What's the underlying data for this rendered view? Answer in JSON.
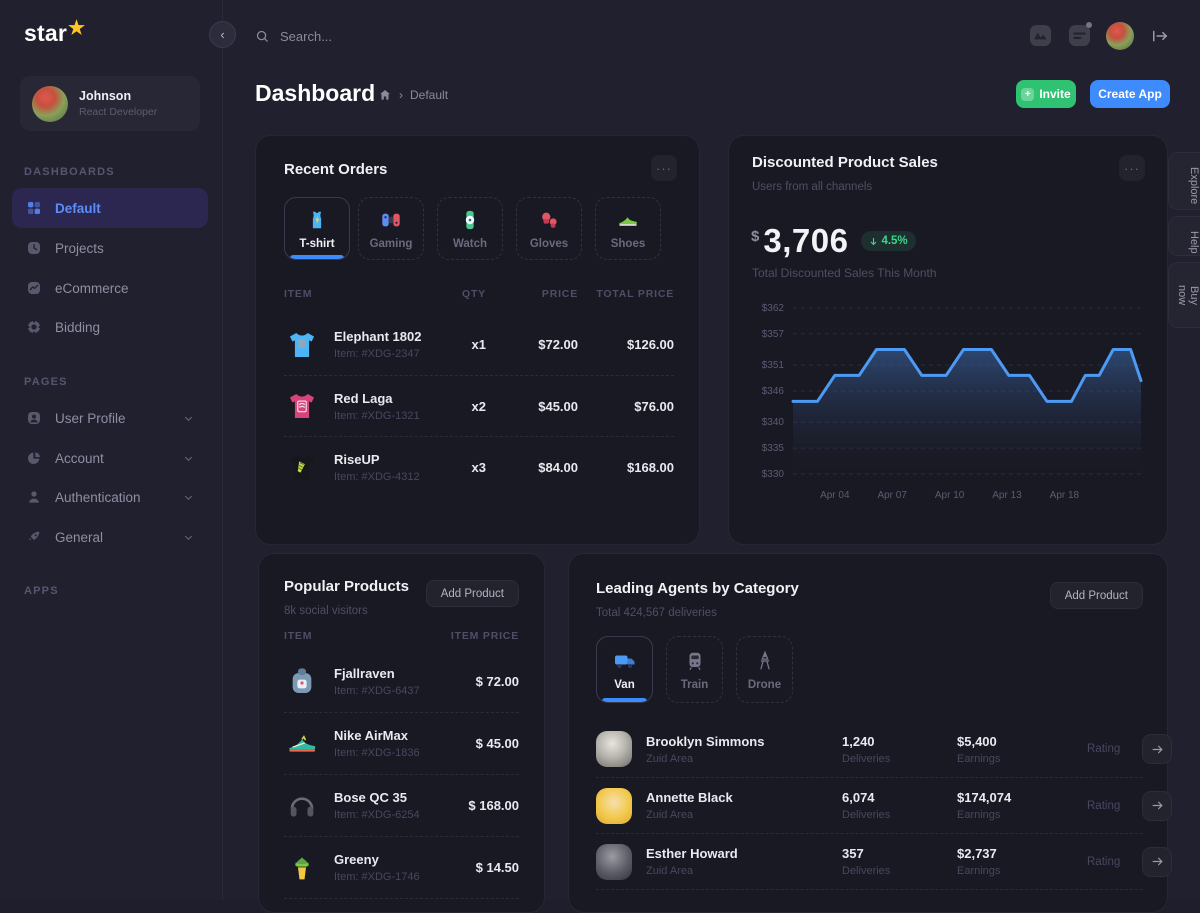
{
  "colors": {
    "accent_blue": "#3d8bfd",
    "accent_green": "#2fc272",
    "line_blue": "#4d9af5",
    "badge_green": "#3ed58c",
    "brand_star": "#ffc527",
    "active_nav_text": "#5b8dfc"
  },
  "brand": {
    "name": "star",
    "star": "★"
  },
  "topbar": {
    "search_placeholder": "Search..."
  },
  "page": {
    "title": "Dashboard",
    "breadcrumb_sep": "›",
    "breadcrumb_current": "Default",
    "invite_label": "Invite",
    "invite_plus": "+",
    "create_app_label": "Create App"
  },
  "icons": {
    "ellipsis": "···",
    "collapse": "‹"
  },
  "sidebar": {
    "user": {
      "name": "Johnson",
      "role": "React Developer"
    },
    "sections": [
      {
        "label": "DASHBOARDS"
      },
      {
        "label": "PAGES"
      },
      {
        "label": "APPS"
      }
    ],
    "dashboards_items": [
      {
        "label": "Default"
      },
      {
        "label": "Projects"
      },
      {
        "label": "eCommerce"
      },
      {
        "label": "Bidding"
      }
    ],
    "pages_items": [
      {
        "label": "User Profile"
      },
      {
        "label": "Account"
      },
      {
        "label": "Authentication"
      },
      {
        "label": "General"
      }
    ]
  },
  "recent_orders": {
    "title": "Recent Orders",
    "tabs": [
      {
        "label": "T-shirt"
      },
      {
        "label": "Gaming"
      },
      {
        "label": "Watch"
      },
      {
        "label": "Gloves"
      },
      {
        "label": "Shoes"
      }
    ],
    "columns": [
      "ITEM",
      "QTY",
      "PRICE",
      "TOTAL PRICE"
    ],
    "rows": [
      {
        "name": "Elephant 1802",
        "item": "Item: #XDG-2347",
        "qty": "x1",
        "price": "$72.00",
        "total": "$126.00"
      },
      {
        "name": "Red Laga",
        "item": "Item: #XDG-1321",
        "qty": "x2",
        "price": "$45.00",
        "total": "$76.00"
      },
      {
        "name": "RiseUP",
        "item": "Item: #XDG-4312",
        "qty": "x3",
        "price": "$84.00",
        "total": "$168.00"
      }
    ]
  },
  "sales": {
    "title": "Discounted Product Sales",
    "subtitle": "Users from all channels",
    "currency": "$",
    "value": "3,706",
    "delta": "4.5%",
    "caption": "Total Discounted Sales This Month"
  },
  "chart_data": {
    "type": "area",
    "title": "Discounted Product Sales",
    "ylim": [
      330,
      362
    ],
    "yticks": [
      362,
      357,
      351,
      346,
      340,
      335,
      330
    ],
    "ytick_prefix": "$",
    "xticks": [
      {
        "label": "Apr 04",
        "pos": 12
      },
      {
        "label": "Apr 07",
        "pos": 28.5
      },
      {
        "label": "Apr 10",
        "pos": 45
      },
      {
        "label": "Apr 13",
        "pos": 61.5
      },
      {
        "label": "Apr 18",
        "pos": 78
      }
    ],
    "grid": "dashed",
    "legend": "none",
    "points": [
      [
        0,
        344
      ],
      [
        7,
        344
      ],
      [
        12,
        349
      ],
      [
        19,
        349
      ],
      [
        24,
        354
      ],
      [
        32,
        354
      ],
      [
        37,
        349
      ],
      [
        44,
        349
      ],
      [
        49,
        354
      ],
      [
        57,
        354
      ],
      [
        62,
        349
      ],
      [
        68,
        349
      ],
      [
        73,
        344
      ],
      [
        80,
        344
      ],
      [
        84,
        349
      ],
      [
        88,
        349
      ],
      [
        92,
        354
      ],
      [
        97,
        354
      ],
      [
        100,
        348
      ]
    ]
  },
  "popular": {
    "title": "Popular Products",
    "subtitle": "8k social visitors",
    "action": "Add Product",
    "columns": [
      "ITEM",
      "ITEM PRICE"
    ],
    "rows": [
      {
        "name": "Fjallraven",
        "item": "Item: #XDG-6437",
        "price": "$ 72.00"
      },
      {
        "name": "Nike AirMax",
        "item": "Item: #XDG-1836",
        "price": "$ 45.00"
      },
      {
        "name": "Bose QC 35",
        "item": "Item: #XDG-6254",
        "price": "$ 168.00"
      },
      {
        "name": "Greeny",
        "item": "Item: #XDG-1746",
        "price": "$ 14.50"
      }
    ]
  },
  "agents": {
    "title": "Leading Agents by Category",
    "subtitle": "Total 424,567 deliveries",
    "action": "Add Product",
    "tabs": [
      {
        "label": "Van"
      },
      {
        "label": "Train"
      },
      {
        "label": "Drone"
      }
    ],
    "rows": [
      {
        "name": "Brooklyn Simmons",
        "area": "Zuid Area",
        "deliveries": "1,240",
        "deliveries_label": "Deliveries",
        "earnings": "$5,400",
        "earnings_label": "Earnings",
        "rating_label": "Rating"
      },
      {
        "name": "Annette Black",
        "area": "Zuid Area",
        "deliveries": "6,074",
        "deliveries_label": "Deliveries",
        "earnings": "$174,074",
        "earnings_label": "Earnings",
        "rating_label": "Rating"
      },
      {
        "name": "Esther Howard",
        "area": "Zuid Area",
        "deliveries": "357",
        "deliveries_label": "Deliveries",
        "earnings": "$2,737",
        "earnings_label": "Earnings",
        "rating_label": "Rating"
      }
    ]
  },
  "side_tabs": [
    {
      "label": "Explore"
    },
    {
      "label": "Help"
    },
    {
      "label": "Buy now"
    }
  ]
}
